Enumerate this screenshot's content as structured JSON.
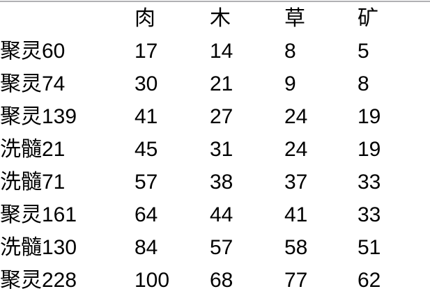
{
  "colors": {
    "background": "#ffffff",
    "text": "#000000",
    "top_border": "#b0b0b3"
  },
  "table": {
    "columns": [
      "",
      "肉",
      "木",
      "草",
      "矿"
    ],
    "rows": [
      {
        "label": "聚灵60",
        "values": [
          17,
          14,
          8,
          5
        ]
      },
      {
        "label": "聚灵74",
        "values": [
          30,
          21,
          9,
          8
        ]
      },
      {
        "label": "聚灵139",
        "values": [
          41,
          27,
          24,
          19
        ]
      },
      {
        "label": "洗髓21",
        "values": [
          45,
          31,
          24,
          19
        ]
      },
      {
        "label": "洗髓71",
        "values": [
          57,
          38,
          37,
          33
        ]
      },
      {
        "label": "聚灵161",
        "values": [
          64,
          44,
          41,
          33
        ]
      },
      {
        "label": "洗髓130",
        "values": [
          84,
          57,
          58,
          51
        ]
      },
      {
        "label": "聚灵228",
        "values": [
          100,
          68,
          77,
          62
        ]
      }
    ]
  }
}
